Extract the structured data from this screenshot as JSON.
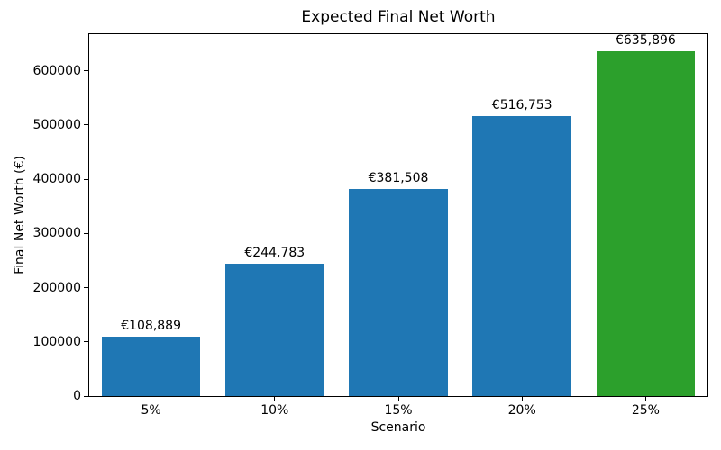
{
  "chart_data": {
    "type": "bar",
    "title": "Expected Final Net Worth",
    "xlabel": "Scenario",
    "ylabel": "Final Net Worth (€)",
    "categories": [
      "5%",
      "10%",
      "15%",
      "20%",
      "25%"
    ],
    "values": [
      108889,
      244783,
      381508,
      516753,
      635896
    ],
    "bar_labels": [
      "€108,889",
      "€244,783",
      "€381,508",
      "€516,753",
      "€635,896"
    ],
    "bar_colors": [
      "#1f77b4",
      "#1f77b4",
      "#1f77b4",
      "#1f77b4",
      "#2ca02c"
    ],
    "ylim": [
      0,
      667691
    ],
    "yticks": [
      0,
      100000,
      200000,
      300000,
      400000,
      500000,
      600000
    ],
    "grid": false,
    "legend": "none",
    "bar_width_fraction": 0.8,
    "frame_color": "#000000",
    "background_color": "#ffffff"
  }
}
